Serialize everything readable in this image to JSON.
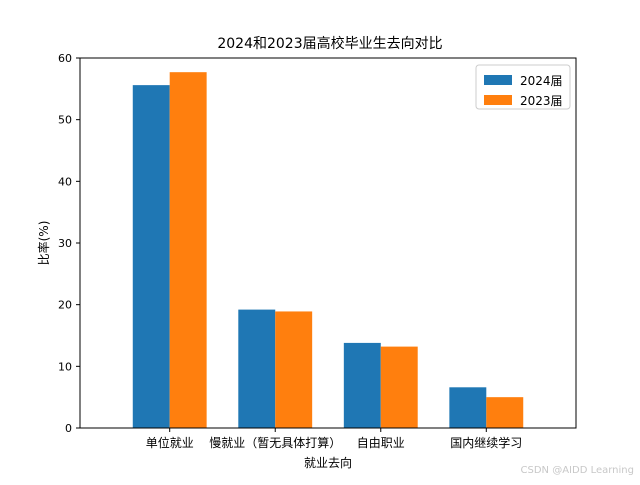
{
  "chart_data": {
    "type": "bar",
    "title": "2024和2023届高校毕业生去向对比",
    "xlabel": "就业去向",
    "ylabel": "比率(%)",
    "categories": [
      "单位就业",
      "慢就业（暂无具体打算）",
      "自由职业",
      "国内继续学习"
    ],
    "series": [
      {
        "name": "2024届",
        "color": "#1f77b4",
        "values": [
          55.6,
          19.2,
          13.8,
          6.6
        ]
      },
      {
        "name": "2023届",
        "color": "#ff7f0e",
        "values": [
          57.7,
          18.9,
          13.2,
          5.0
        ]
      }
    ],
    "ylim": [
      0,
      60
    ],
    "yticks": [
      "0",
      "10",
      "20",
      "30",
      "40",
      "50",
      "60"
    ],
    "grid": false,
    "legend_position": "top-right"
  },
  "watermark": "CSDN @AIDD Learning"
}
